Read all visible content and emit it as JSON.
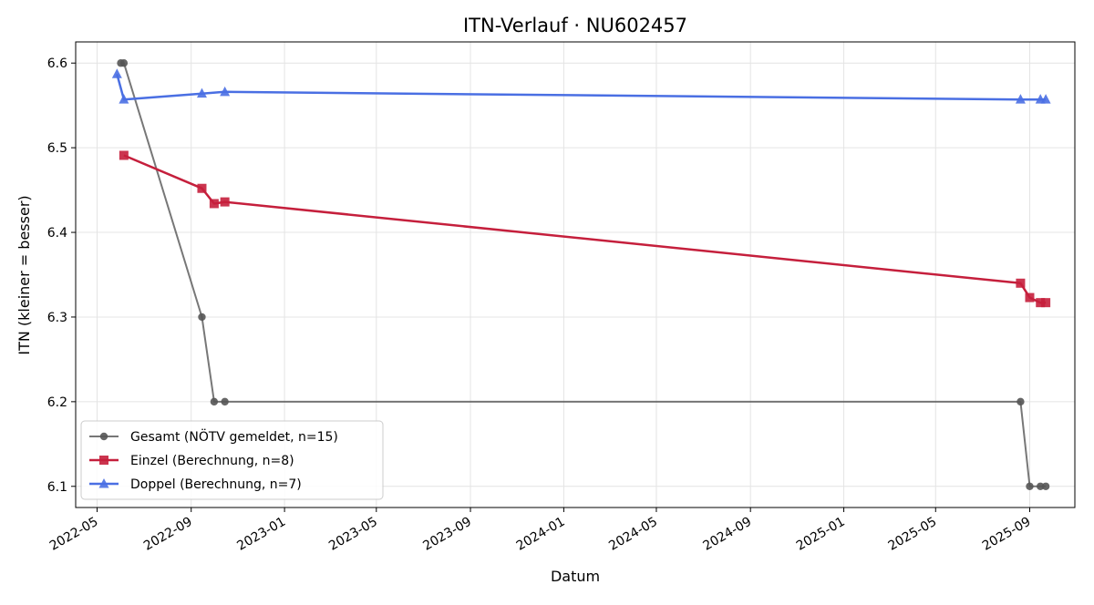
{
  "chart_data": {
    "type": "line",
    "title": "ITN-Verlauf · NU602457",
    "xlabel": "Datum",
    "ylabel": "ITN  (kleiner = besser)",
    "x_type": "date",
    "xlim": [
      "2022-04-03",
      "2025-10-30"
    ],
    "ylim": [
      6.075,
      6.625
    ],
    "x_ticks": [
      "2022-05",
      "2022-09",
      "2023-01",
      "2023-05",
      "2023-09",
      "2024-01",
      "2024-05",
      "2024-09",
      "2025-01",
      "2025-05",
      "2025-09"
    ],
    "y_ticks": [
      6.1,
      6.2,
      6.3,
      6.4,
      6.5,
      6.6
    ],
    "grid": true,
    "legend_position": "lower-left",
    "series": [
      {
        "name": "Gesamt (NÖTV gemeldet, n=15)",
        "color": "#555555",
        "marker": "circle",
        "points": [
          {
            "x": "2022-06-01",
            "y": 6.6
          },
          {
            "x": "2022-06-05",
            "y": 6.6
          },
          {
            "x": "2022-09-15",
            "y": 6.3
          },
          {
            "x": "2022-10-01",
            "y": 6.2
          },
          {
            "x": "2022-10-15",
            "y": 6.2
          },
          {
            "x": "2025-08-20",
            "y": 6.2
          },
          {
            "x": "2025-09-01",
            "y": 6.1
          },
          {
            "x": "2025-09-15",
            "y": 6.1
          },
          {
            "x": "2025-09-22",
            "y": 6.1
          }
        ]
      },
      {
        "name": "Einzel (Berechnung, n=8)",
        "color": "#c51f3c",
        "marker": "square",
        "points": [
          {
            "x": "2022-06-05",
            "y": 6.491
          },
          {
            "x": "2022-09-15",
            "y": 6.452
          },
          {
            "x": "2022-10-01",
            "y": 6.434
          },
          {
            "x": "2022-10-15",
            "y": 6.436
          },
          {
            "x": "2025-08-20",
            "y": 6.34
          },
          {
            "x": "2025-09-01",
            "y": 6.323
          },
          {
            "x": "2025-09-15",
            "y": 6.317
          },
          {
            "x": "2025-09-22",
            "y": 6.317
          }
        ]
      },
      {
        "name": "Doppel (Berechnung, n=7)",
        "color": "#4a6fe3",
        "marker": "triangle",
        "points": [
          {
            "x": "2022-05-27",
            "y": 6.587
          },
          {
            "x": "2022-06-05",
            "y": 6.557
          },
          {
            "x": "2022-09-15",
            "y": 6.564
          },
          {
            "x": "2022-10-15",
            "y": 6.566
          },
          {
            "x": "2025-08-20",
            "y": 6.557
          },
          {
            "x": "2025-09-15",
            "y": 6.557
          },
          {
            "x": "2025-09-22",
            "y": 6.557
          }
        ]
      }
    ]
  }
}
